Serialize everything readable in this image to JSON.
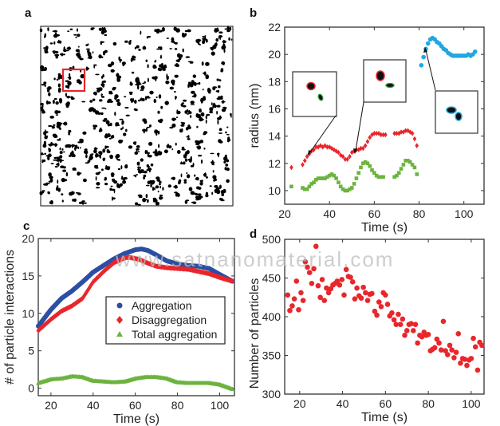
{
  "panel_labels": {
    "a": "a",
    "b": "b",
    "c": "c",
    "d": "d"
  },
  "watermark": "www.satnanomaterial.com",
  "colors": {
    "aggregation": "#2b4fa3",
    "disaggregation": "#e8262b",
    "total": "#6cb33f",
    "cyan": "#1fa7e1",
    "highlight": "#e8262b"
  },
  "chart_data": [
    {
      "panel": "b",
      "type": "scatter",
      "xlabel": "Time (s)",
      "ylabel": "radius (nm)",
      "xlim": [
        20,
        109
      ],
      "ylim": [
        9,
        22
      ],
      "xticks": [
        20,
        40,
        60,
        80,
        100
      ],
      "yticks": [
        10,
        12,
        14,
        16,
        18,
        20,
        22
      ],
      "series": [
        {
          "marker": "diamond",
          "color": "#e8262b",
          "x": [
            23,
            28,
            29,
            30,
            31,
            32,
            33,
            34,
            35,
            36,
            37,
            38,
            39,
            40,
            41,
            42,
            43,
            44,
            45,
            46,
            47,
            48,
            49,
            50,
            51,
            52,
            53,
            54,
            55,
            56,
            57,
            58,
            59,
            60,
            61,
            62,
            63,
            64,
            65,
            69,
            70,
            71,
            72,
            73,
            74,
            75,
            76,
            77,
            78,
            79
          ],
          "y": [
            11.7,
            11.9,
            12.2,
            12.5,
            12.7,
            12.9,
            13.0,
            13.2,
            13.2,
            13.3,
            13.2,
            13.3,
            13.2,
            13.2,
            13.1,
            13.0,
            12.9,
            12.8,
            12.6,
            12.5,
            12.3,
            12.3,
            12.5,
            12.8,
            12.9,
            13.0,
            13.0,
            13.1,
            13.1,
            13.3,
            13.6,
            13.9,
            14.1,
            14.2,
            14.2,
            14.2,
            14.1,
            14.1,
            14.1,
            14.2,
            14.2,
            14.2,
            14.3,
            14.3,
            14.4,
            14.4,
            14.3,
            14.2,
            13.8,
            13.3
          ]
        },
        {
          "marker": "square",
          "color": "#6cb33f",
          "x": [
            23,
            28,
            29,
            30,
            31,
            32,
            33,
            34,
            35,
            36,
            37,
            38,
            39,
            40,
            41,
            42,
            43,
            44,
            45,
            46,
            47,
            48,
            49,
            50,
            51,
            52,
            53,
            54,
            55,
            56,
            57,
            58,
            59,
            60,
            61,
            62,
            63,
            64,
            69,
            70,
            71,
            72,
            73,
            74,
            75,
            76,
            77,
            78,
            79
          ],
          "y": [
            10.3,
            10.2,
            10.1,
            10.1,
            10.3,
            10.5,
            10.6,
            10.8,
            10.9,
            10.9,
            10.9,
            10.9,
            11.0,
            11.1,
            11.2,
            11.1,
            10.9,
            10.6,
            10.3,
            10.1,
            10.0,
            10.0,
            10.1,
            10.2,
            10.5,
            10.9,
            11.3,
            11.7,
            12.0,
            12.1,
            12.0,
            11.8,
            11.5,
            11.3,
            11.1,
            11.0,
            11.0,
            11.0,
            11.0,
            11.1,
            11.3,
            11.6,
            11.9,
            12.2,
            12.2,
            12.1,
            11.9,
            11.7,
            11.2
          ]
        },
        {
          "marker": "circle",
          "color": "#1fa7e1",
          "x": [
            81,
            82,
            83,
            84,
            85,
            86,
            87,
            88,
            89,
            90,
            91,
            92,
            93,
            94,
            95,
            96,
            97,
            98,
            99,
            100,
            101,
            102,
            103,
            104,
            105
          ],
          "y": [
            19.2,
            19.8,
            20.4,
            20.8,
            21.1,
            21.2,
            21.1,
            20.9,
            20.8,
            20.6,
            20.4,
            20.3,
            20.1,
            20.0,
            19.9,
            19.9,
            19.9,
            19.9,
            19.9,
            19.9,
            19.9,
            20.0,
            19.9,
            20.0,
            20.2
          ]
        }
      ]
    },
    {
      "panel": "c",
      "type": "line",
      "xlabel": "Time (s)",
      "ylabel": "# of particle interactions",
      "xlim": [
        14,
        107
      ],
      "ylim": [
        -1,
        20
      ],
      "xticks": [
        20,
        40,
        60,
        80,
        100
      ],
      "yticks": [
        0,
        5,
        10,
        15,
        20
      ],
      "legend": "center-right",
      "series": [
        {
          "name": "Aggregation",
          "marker": "circle",
          "color": "#2b4fa3",
          "x": [
            14,
            20,
            25,
            30,
            35,
            40,
            45,
            50,
            55,
            60,
            63,
            66,
            70,
            75,
            80,
            85,
            90,
            95,
            100,
            106
          ],
          "y": [
            8.3,
            10.5,
            12.0,
            13.0,
            14.2,
            15.5,
            16.4,
            17.3,
            18.0,
            18.5,
            18.6,
            18.4,
            17.8,
            17.0,
            16.6,
            16.4,
            16.3,
            16.0,
            15.2,
            14.3
          ]
        },
        {
          "name": "Disaggregation",
          "marker": "diamond",
          "color": "#e8262b",
          "x": [
            14,
            20,
            25,
            30,
            35,
            40,
            45,
            50,
            55,
            57,
            62,
            66,
            70,
            75,
            80,
            85,
            90,
            95,
            100,
            106
          ],
          "y": [
            7.7,
            9.2,
            10.3,
            11.0,
            12.0,
            14.2,
            15.6,
            16.8,
            17.4,
            17.5,
            17.2,
            16.7,
            16.3,
            16.1,
            16.0,
            15.9,
            15.6,
            15.3,
            14.8,
            14.3
          ]
        },
        {
          "name": "Total aggregation",
          "marker": "triangle",
          "color": "#6cb33f",
          "x": [
            14,
            20,
            25,
            30,
            35,
            40,
            45,
            50,
            55,
            60,
            65,
            70,
            75,
            80,
            85,
            90,
            95,
            100,
            106
          ],
          "y": [
            0.7,
            1.2,
            1.3,
            1.6,
            1.5,
            1.0,
            0.9,
            0.8,
            0.9,
            1.3,
            1.5,
            1.5,
            1.3,
            0.8,
            0.7,
            0.7,
            0.7,
            0.5,
            -0.1
          ]
        }
      ]
    },
    {
      "panel": "d",
      "type": "scatter",
      "xlabel": "Time (s)",
      "ylabel": "Number of particles",
      "xlim": [
        13,
        106
      ],
      "ylim": [
        300,
        500
      ],
      "xticks": [
        20,
        40,
        60,
        80,
        100
      ],
      "yticks": [
        300,
        350,
        400,
        450,
        500
      ],
      "series": [
        {
          "marker": "circle",
          "color": "#e8262b",
          "x": [
            14.4,
            15.4,
            16.5,
            17.5,
            18.5,
            19.5,
            20.6,
            21.6,
            22.6,
            23.6,
            24.6,
            25.6,
            26.6,
            27.6,
            28.6,
            29.6,
            30.5,
            31.5,
            32.5,
            33.5,
            34.5,
            35.5,
            36.5,
            37.5,
            38.6,
            39.7,
            40.7,
            41.7,
            42.7,
            43.7,
            44.7,
            45.7,
            46.7,
            47.7,
            48.7,
            49.7,
            50.7,
            51.7,
            52.7,
            53.7,
            55,
            56,
            57,
            58,
            59,
            60,
            61,
            62,
            63,
            64,
            65,
            66,
            67,
            68,
            69,
            70,
            71,
            72,
            73,
            74,
            75,
            76,
            77,
            78,
            79,
            80,
            81,
            82,
            83,
            84,
            85,
            86,
            87,
            88,
            89,
            90,
            91,
            92,
            93,
            94,
            95,
            96,
            97,
            98,
            99,
            100,
            101,
            102,
            103,
            104,
            105
          ],
          "y": [
            428,
            408,
            414,
            423,
            446,
            409,
            431,
            421,
            471,
            464,
            457,
            443,
            462,
            491,
            440,
            425,
            448,
            421,
            437,
            431,
            436,
            441,
            443,
            446,
            441,
            448,
            428,
            461,
            452,
            451,
            445,
            423,
            437,
            427,
            424,
            438,
            431,
            421,
            429,
            430,
            407,
            402,
            419,
            413,
            431,
            428,
            416,
            401,
            405,
            396,
            390,
            403,
            390,
            397,
            376,
            382,
            390,
            391,
            382,
            390,
            366,
            376,
            374,
            380,
            376,
            377,
            356,
            358,
            360,
            371,
            366,
            357,
            394,
            356,
            351,
            363,
            357,
            347,
            354,
            378,
            340,
            346,
            345,
            337,
            344,
            346,
            372,
            361,
            331,
            367,
            363
          ]
        }
      ]
    }
  ]
}
